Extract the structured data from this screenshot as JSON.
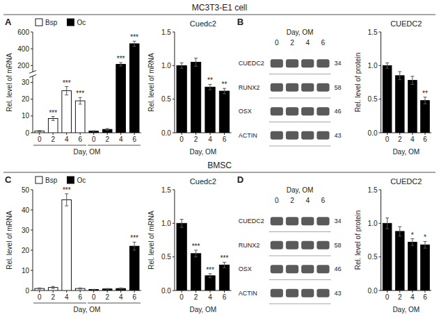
{
  "section_titles": [
    "MC3T3-E1 cell",
    "BMSC"
  ],
  "chart_data": [
    {
      "type": "bar",
      "label": "A",
      "categories": [
        "0",
        "2",
        "4",
        "6",
        "0",
        "2",
        "4",
        "6"
      ],
      "x_label": "Day, OM",
      "y_label": "Rel. level of mRNA",
      "ylim": [
        0,
        600
      ],
      "yticks": [
        0,
        10,
        20,
        30,
        200,
        400,
        600
      ],
      "series": [
        {
          "name": "Bsp",
          "color": "#ffffff",
          "values": [
            1.0,
            8.5,
            25.0,
            19.0,
            null,
            null,
            null,
            null
          ],
          "errors": [
            0.3,
            1.2,
            2.5,
            2.0,
            null,
            null,
            null,
            null
          ],
          "annotations": [
            null,
            "***",
            "***",
            "***",
            null,
            null,
            null,
            null
          ]
        },
        {
          "name": "Oc",
          "color": "#000000",
          "values": [
            null,
            null,
            null,
            null,
            1.0,
            2.0,
            215.0,
            460.0
          ],
          "errors": [
            null,
            null,
            null,
            null,
            0.2,
            0.5,
            20.0,
            30.0
          ],
          "annotations": [
            null,
            null,
            null,
            null,
            null,
            null,
            "***",
            "***"
          ]
        }
      ]
    },
    {
      "type": "bar",
      "title": "Cuedc2",
      "categories": [
        "0",
        "2",
        "4",
        "6"
      ],
      "x_label": "Day, OM",
      "y_label": "Rel. level of mRNA",
      "color": "#000000",
      "values": [
        1.0,
        1.05,
        0.68,
        0.62
      ],
      "errors": [
        0.04,
        0.06,
        0.04,
        0.04
      ],
      "annotations": [
        null,
        null,
        "**",
        "**"
      ],
      "ylim": [
        0.0,
        1.5
      ],
      "yticks": [
        {
          "value": 0.0,
          "label": "0.0"
        },
        0.5,
        {
          "value": 1.0,
          "label": "1.0"
        },
        1.5
      ]
    },
    {
      "type": "blot",
      "label": "B",
      "title": "Day, OM",
      "categories": [
        "0",
        "2",
        "4",
        "6"
      ],
      "rows": [
        "CUEDC2",
        "RUNX2",
        "OSX",
        "ACTIN"
      ],
      "kda": [
        34,
        58,
        46,
        43
      ]
    },
    {
      "type": "bar",
      "title": "CUEDC2",
      "categories": [
        "0",
        "2",
        "4",
        "6"
      ],
      "x_label": "Day, OM",
      "y_label": "Rel. level of protein",
      "color": "#000000",
      "values": [
        1.0,
        0.85,
        0.78,
        0.48
      ],
      "errors": [
        0.04,
        0.06,
        0.06,
        0.05
      ],
      "annotations": [
        null,
        null,
        null,
        "**"
      ],
      "ylim": [
        0.0,
        1.5
      ],
      "yticks": [
        {
          "value": 0.0,
          "label": "0.0"
        },
        0.5,
        {
          "value": 1.0,
          "label": "1.0"
        },
        1.5
      ]
    },
    {
      "type": "bar",
      "label": "C",
      "categories": [
        "0",
        "2",
        "4",
        "6",
        "0",
        "2",
        "4",
        "6"
      ],
      "x_label": "Day, OM",
      "y_label": "Rel. level of mRNA",
      "ylim": [
        0,
        50
      ],
      "yticks": [
        0,
        10,
        20,
        30,
        40,
        50
      ],
      "series": [
        {
          "name": "Bsp",
          "color": "#ffffff",
          "values": [
            1.0,
            1.5,
            45.0,
            1.0,
            null,
            null,
            null,
            null
          ],
          "errors": [
            0.3,
            0.5,
            3.0,
            0.3,
            null,
            null,
            null,
            null
          ],
          "annotations": [
            null,
            null,
            "***",
            null,
            null,
            null,
            null,
            null
          ]
        },
        {
          "name": "Oc",
          "color": "#000000",
          "values": [
            null,
            null,
            null,
            null,
            0.5,
            0.8,
            1.0,
            22.0
          ],
          "errors": [
            null,
            null,
            null,
            null,
            0.1,
            0.2,
            0.3,
            2.0
          ],
          "annotations": [
            null,
            null,
            null,
            null,
            null,
            null,
            null,
            "***"
          ]
        }
      ]
    },
    {
      "type": "bar",
      "title": "Cuedc2",
      "categories": [
        "0",
        "2",
        "4",
        "6"
      ],
      "x_label": "Day, OM",
      "y_label": "Rel. level of mRNA",
      "color": "#000000",
      "values": [
        1.0,
        0.55,
        0.22,
        0.38
      ],
      "errors": [
        0.06,
        0.05,
        0.03,
        0.04
      ],
      "annotations": [
        null,
        "***",
        "***",
        "***"
      ],
      "ylim": [
        0.0,
        1.5
      ],
      "yticks": [
        {
          "value": 0.0,
          "label": "0.0"
        },
        0.5,
        {
          "value": 1.0,
          "label": "1.0"
        },
        1.5
      ]
    },
    {
      "type": "blot",
      "label": "D",
      "title": "Day, OM",
      "categories": [
        "0",
        "2",
        "4",
        "6"
      ],
      "rows": [
        "CUEDC2",
        "RUNX2",
        "OSX",
        "ACTIN"
      ],
      "kda": [
        34,
        58,
        46,
        43
      ]
    },
    {
      "type": "bar",
      "title": "CUEDC2",
      "categories": [
        "0",
        "2",
        "4",
        "6"
      ],
      "x_label": "Day, OM",
      "y_label": "Rel. level of protein",
      "color": "#000000",
      "values": [
        1.0,
        0.88,
        0.72,
        0.68
      ],
      "errors": [
        0.08,
        0.07,
        0.05,
        0.05
      ],
      "annotations": [
        null,
        null,
        "*",
        "*"
      ],
      "ylim": [
        0.0,
        1.5
      ],
      "yticks": [
        {
          "value": 0.0,
          "label": "0.0"
        },
        0.5,
        {
          "value": 1.0,
          "label": "1.0"
        },
        1.5
      ]
    }
  ]
}
